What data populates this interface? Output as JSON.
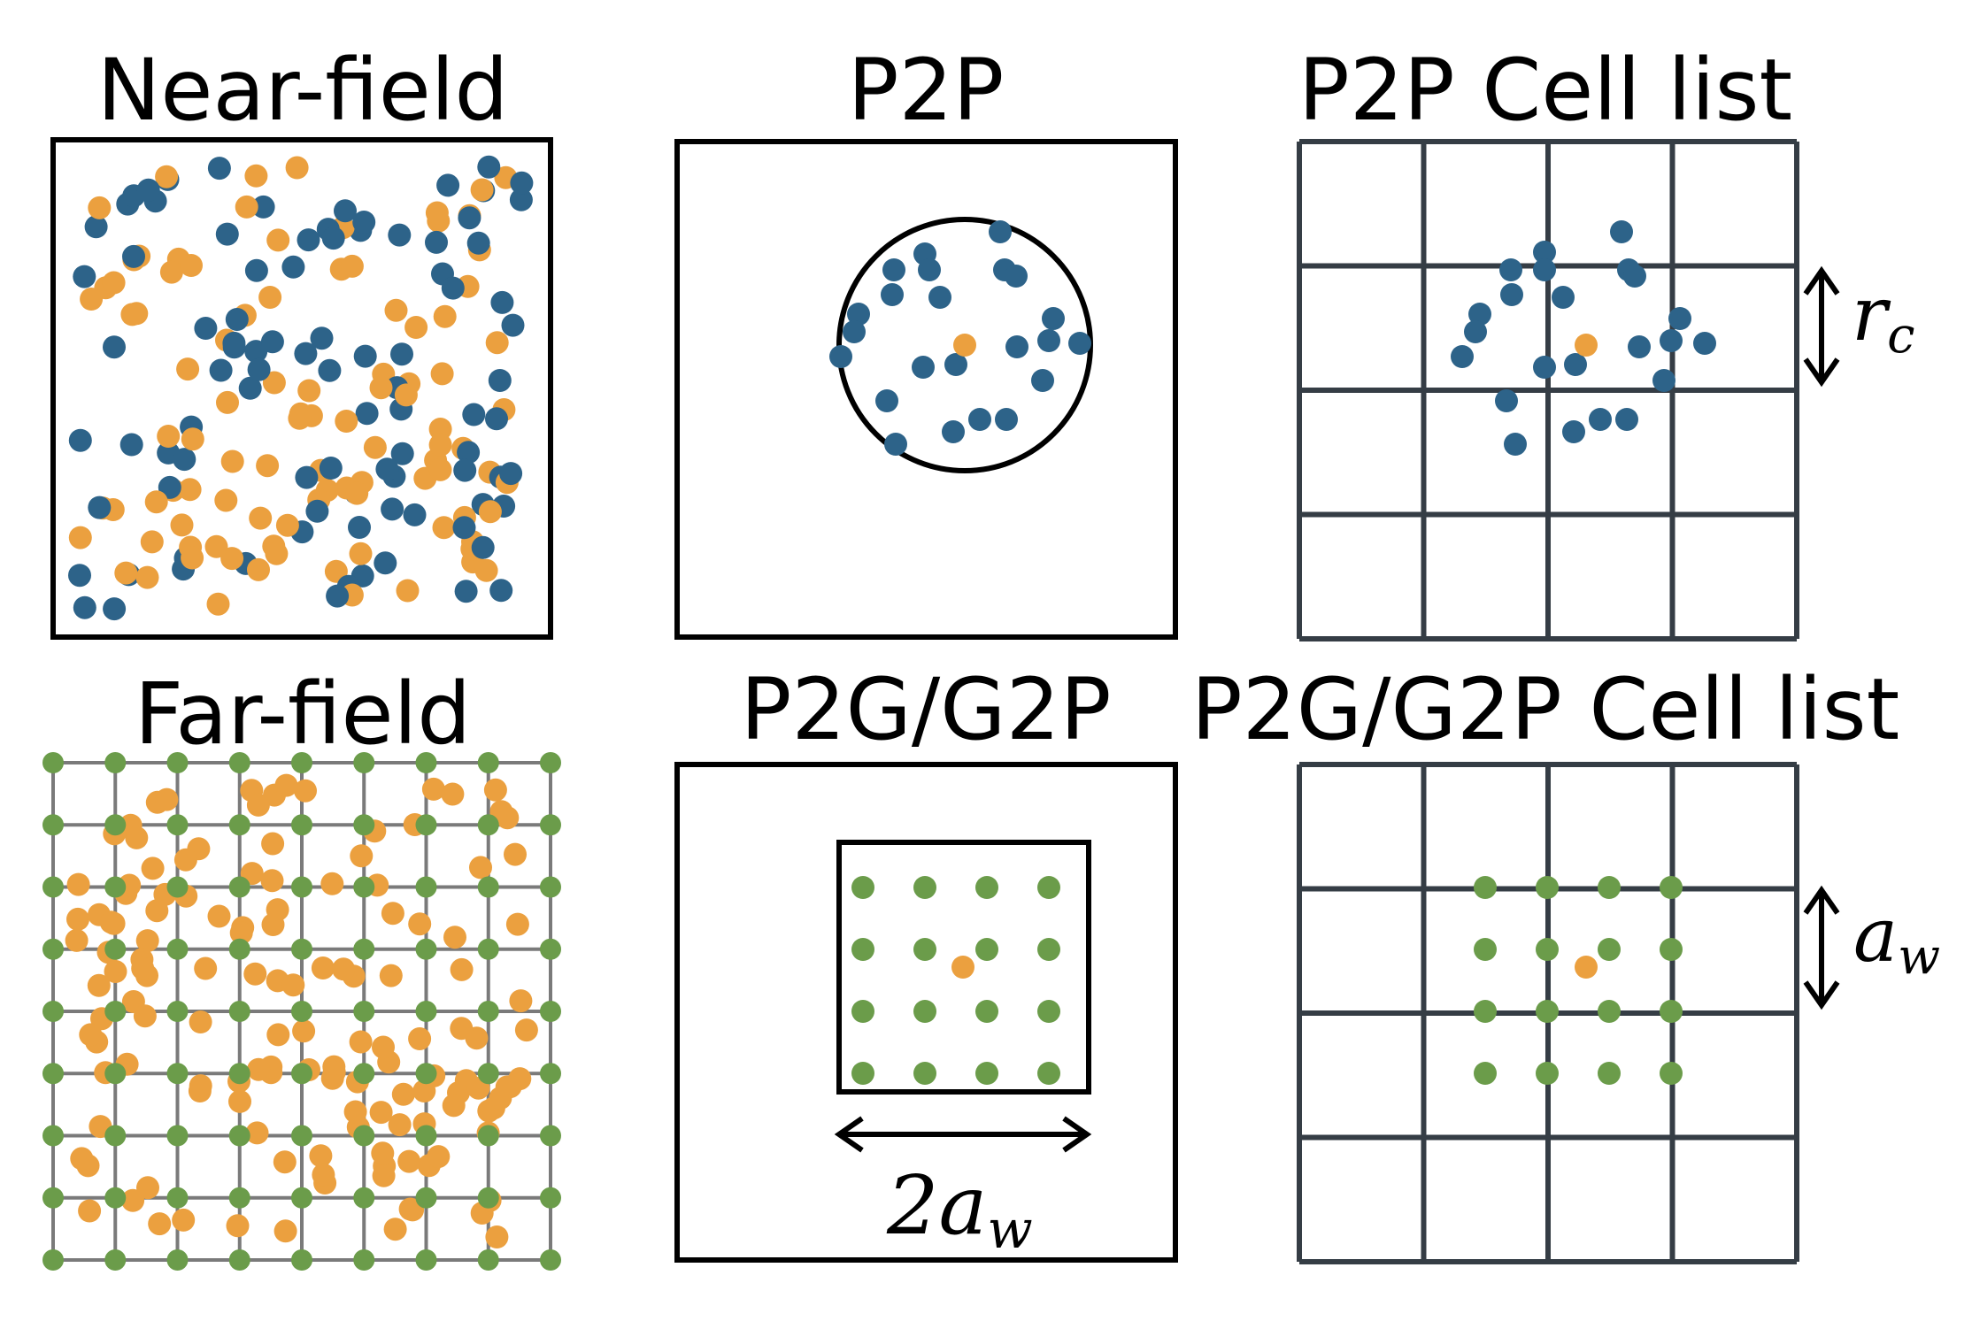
{
  "titles": {
    "near_field": "Near-field",
    "p2p": "P2P",
    "p2p_cell_list": "P2P Cell list",
    "far_field": "Far-field",
    "p2g_g2p": "P2G/G2P",
    "p2g_g2p_cell_list": "P2G/G2P Cell list"
  },
  "labels": {
    "r_c": {
      "main": "r",
      "sub": "c"
    },
    "a_w": {
      "main": "a",
      "sub": "w"
    },
    "two_a_w": {
      "main": "2a",
      "sub": "w"
    }
  },
  "colors": {
    "blue_particle": "#2d6389",
    "orange_particle": "#eba03f",
    "green_grid_node": "#6b9c4a",
    "black_frame": "#000000",
    "cell_grid": "#353d45",
    "far_grid": "#7a7a7a"
  }
}
